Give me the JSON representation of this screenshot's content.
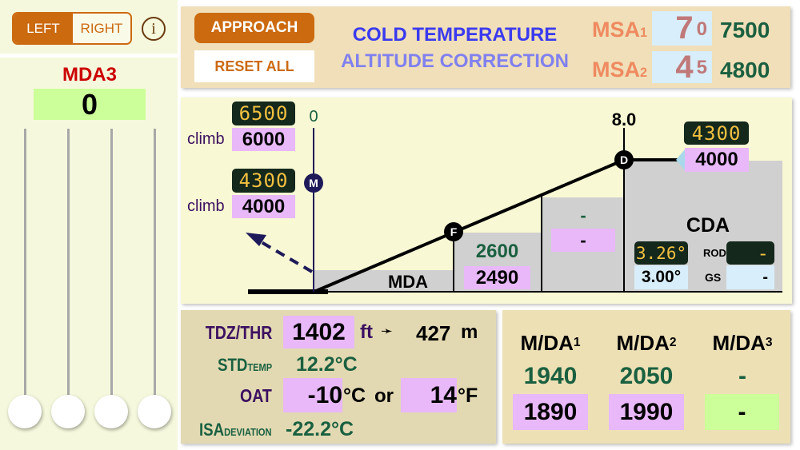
{
  "side": {
    "toggle": {
      "left": "LEFT",
      "right": "RIGHT",
      "selected": "LEFT"
    },
    "info_icon": "info-icon",
    "mda_label": "MDA3",
    "mda_value": "0",
    "slider_values": [
      0,
      0,
      0,
      0
    ]
  },
  "header": {
    "approach": "APPROACH",
    "reset": "RESET ALL",
    "title1": "COLD TEMPERATURE",
    "title2": "ALTITUDE CORRECTION",
    "msa": [
      {
        "label": "MSA",
        "sub": "1",
        "big": "7",
        "small": "0",
        "value": "7500"
      },
      {
        "label": "MSA",
        "sub": "2",
        "big": "4",
        "small": "5",
        "value": "4800"
      }
    ]
  },
  "profile": {
    "m_dist": "0",
    "d_dist": "8.0",
    "m_marker": "M",
    "f_marker": "F",
    "d_marker": "D",
    "climb1": {
      "label": "climb",
      "corrected": "6500",
      "value": "6000"
    },
    "climb2": {
      "label": "climb",
      "corrected": "4300",
      "value": "4000"
    },
    "fix_alt": {
      "corrected": "4300",
      "value": "4000"
    },
    "mda_label": "MDA",
    "seg_f": {
      "corrected": "2600",
      "value": "2490"
    },
    "seg_mid": {
      "corrected": "-",
      "value": "-"
    },
    "cda": {
      "label": "CDA",
      "angle_corrected": "3.26°",
      "angle": "3.00°",
      "rod_label": "ROD",
      "rod": "-",
      "gs_label": "GS",
      "gs": "-"
    }
  },
  "calc": {
    "tdz_label": "TDZ/THR",
    "tdz": "1402",
    "ft": "ft",
    "arrow": "➛",
    "m_value": "427",
    "m": "m",
    "std_label": "STD",
    "std_sub": "TEMP",
    "std": "12.2°C",
    "oat_label": "OAT",
    "oat_c": "-10",
    "deg_c": "°C",
    "or": "or",
    "oat_f": "14",
    "deg_f": "°F",
    "isa_label": "ISA",
    "isa_sub": "DEVIATION",
    "isa": "-22.2°C"
  },
  "mda": {
    "cols": [
      {
        "label": "M/DA",
        "sub": "1",
        "corrected": "1940",
        "value": "1890"
      },
      {
        "label": "M/DA",
        "sub": "2",
        "corrected": "2050",
        "value": "1990"
      },
      {
        "label": "M/DA",
        "sub": "3",
        "corrected": "-",
        "value": "-"
      }
    ]
  },
  "colors": {
    "accent": "#cc6a10",
    "title": "#3a3aef",
    "green": "#1a6040",
    "pink": "#e8b8f8"
  }
}
